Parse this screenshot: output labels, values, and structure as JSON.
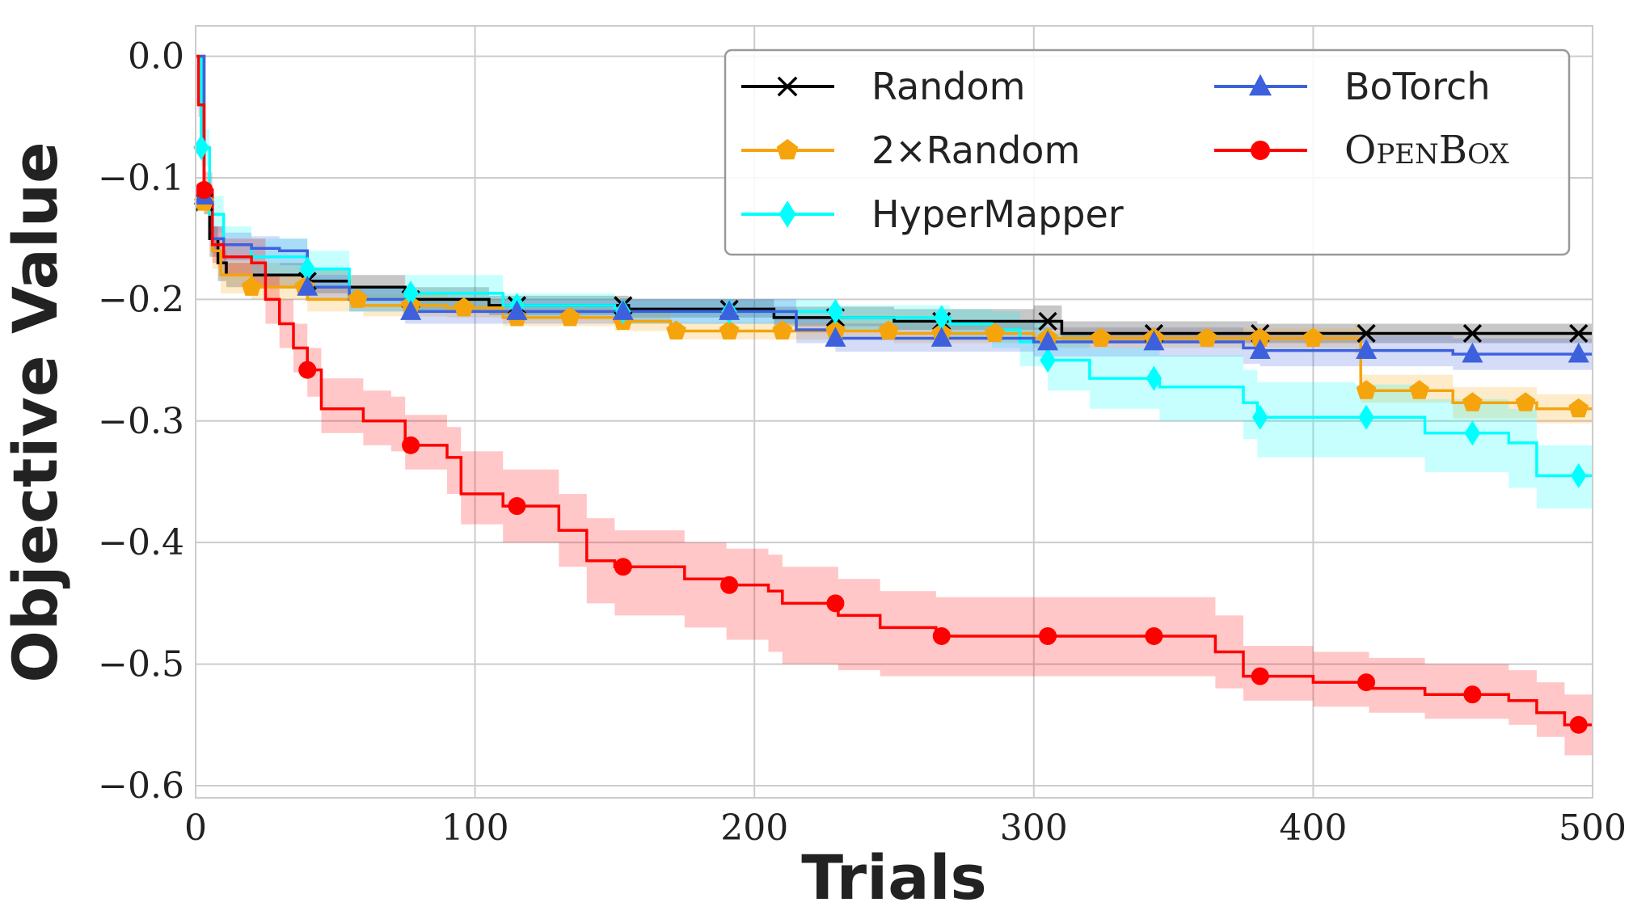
{
  "chart_data": {
    "type": "line",
    "title": "",
    "xlabel": "Trials",
    "ylabel": "Objective Value",
    "xlim": [
      0,
      500
    ],
    "ylim": [
      -0.61,
      0.025
    ],
    "xticks": [
      0,
      100,
      200,
      300,
      400,
      500
    ],
    "xtick_labels": [
      "0",
      "100",
      "200",
      "300",
      "400",
      "500"
    ],
    "yticks": [
      0.0,
      -0.1,
      -0.2,
      -0.3,
      -0.4,
      -0.5,
      -0.6
    ],
    "ytick_labels": [
      "0.0",
      "−0.1",
      "−0.2",
      "−0.3",
      "−0.4",
      "−0.5",
      "−0.6"
    ],
    "grid": true,
    "legend_position": "top-right",
    "series": [
      {
        "name": "Random",
        "color": "#000000",
        "marker": "x",
        "x": [
          0,
          3,
          5,
          8,
          11,
          40,
          55,
          75,
          105,
          155,
          195,
          207,
          250,
          300,
          310,
          380,
          500
        ],
        "y": [
          0.0,
          -0.12,
          -0.15,
          -0.17,
          -0.18,
          -0.185,
          -0.19,
          -0.2,
          -0.205,
          -0.208,
          -0.208,
          -0.215,
          -0.218,
          -0.218,
          -0.228,
          -0.228,
          -0.228
        ],
        "band_lower": [
          0.0,
          -0.13,
          -0.165,
          -0.185,
          -0.19,
          -0.195,
          -0.2,
          -0.21,
          -0.213,
          -0.215,
          -0.215,
          -0.222,
          -0.225,
          -0.225,
          -0.236,
          -0.236,
          -0.236
        ],
        "band_upper": [
          0.0,
          -0.11,
          -0.14,
          -0.16,
          -0.17,
          -0.175,
          -0.18,
          -0.19,
          -0.197,
          -0.2,
          -0.2,
          -0.206,
          -0.208,
          -0.205,
          -0.218,
          -0.22,
          -0.22
        ],
        "marker_x": [
          3,
          40,
          77,
          115,
          153,
          191,
          229,
          267,
          305,
          343,
          381,
          419,
          457,
          495
        ]
      },
      {
        "name": "2×Random",
        "color": "#f5a40c",
        "marker": "pentagon",
        "x": [
          0,
          3,
          6,
          9,
          20,
          40,
          60,
          90,
          110,
          150,
          170,
          200,
          250,
          300,
          350,
          415,
          417,
          450,
          480,
          500
        ],
        "y": [
          0.0,
          -0.12,
          -0.16,
          -0.18,
          -0.19,
          -0.2,
          -0.205,
          -0.207,
          -0.215,
          -0.218,
          -0.226,
          -0.226,
          -0.228,
          -0.232,
          -0.232,
          -0.232,
          -0.275,
          -0.285,
          -0.29,
          -0.29
        ],
        "band_lower": [
          0.0,
          -0.13,
          -0.175,
          -0.195,
          -0.2,
          -0.21,
          -0.214,
          -0.215,
          -0.222,
          -0.226,
          -0.233,
          -0.233,
          -0.236,
          -0.24,
          -0.24,
          -0.245,
          -0.285,
          -0.298,
          -0.302,
          -0.302
        ],
        "band_upper": [
          0.0,
          -0.11,
          -0.15,
          -0.17,
          -0.18,
          -0.19,
          -0.196,
          -0.2,
          -0.207,
          -0.21,
          -0.219,
          -0.219,
          -0.22,
          -0.224,
          -0.224,
          -0.22,
          -0.262,
          -0.272,
          -0.278,
          -0.278
        ],
        "marker_x": [
          3,
          20,
          39,
          58,
          77,
          96,
          115,
          134,
          153,
          172,
          191,
          210,
          229,
          248,
          267,
          286,
          305,
          324,
          343,
          362,
          381,
          400,
          419,
          438,
          457,
          476,
          495
        ]
      },
      {
        "name": "HyperMapper",
        "color": "#00ffff",
        "marker": "diamond",
        "x": [
          0,
          2,
          5,
          10,
          20,
          40,
          55,
          75,
          110,
          150,
          190,
          230,
          270,
          285,
          295,
          305,
          320,
          345,
          375,
          380,
          415,
          440,
          470,
          480,
          500
        ],
        "y": [
          0.0,
          -0.075,
          -0.13,
          -0.155,
          -0.165,
          -0.175,
          -0.2,
          -0.195,
          -0.205,
          -0.21,
          -0.21,
          -0.215,
          -0.22,
          -0.225,
          -0.235,
          -0.25,
          -0.265,
          -0.272,
          -0.285,
          -0.297,
          -0.297,
          -0.31,
          -0.318,
          -0.345,
          -0.345
        ],
        "band_lower": [
          0.0,
          -0.09,
          -0.145,
          -0.17,
          -0.18,
          -0.19,
          -0.21,
          -0.21,
          -0.215,
          -0.22,
          -0.22,
          -0.225,
          -0.232,
          -0.24,
          -0.255,
          -0.275,
          -0.29,
          -0.3,
          -0.315,
          -0.33,
          -0.33,
          -0.342,
          -0.355,
          -0.372,
          -0.372
        ],
        "band_upper": [
          0.0,
          -0.06,
          -0.115,
          -0.14,
          -0.15,
          -0.16,
          -0.19,
          -0.18,
          -0.195,
          -0.2,
          -0.2,
          -0.205,
          -0.208,
          -0.21,
          -0.218,
          -0.228,
          -0.24,
          -0.246,
          -0.258,
          -0.268,
          -0.27,
          -0.282,
          -0.29,
          -0.32,
          -0.32
        ],
        "marker_x": [
          2,
          40,
          77,
          115,
          153,
          191,
          229,
          267,
          305,
          343,
          381,
          419,
          457,
          495
        ]
      },
      {
        "name": "BoTorch",
        "color": "#3d61dd",
        "marker": "triangle",
        "x": [
          0,
          3,
          6,
          10,
          20,
          30,
          40,
          55,
          75,
          115,
          153,
          191,
          215,
          229,
          267,
          300,
          343,
          375,
          381,
          419,
          450,
          500
        ],
        "y": [
          0.0,
          -0.115,
          -0.15,
          -0.155,
          -0.158,
          -0.16,
          -0.19,
          -0.2,
          -0.21,
          -0.21,
          -0.21,
          -0.21,
          -0.225,
          -0.232,
          -0.232,
          -0.235,
          -0.235,
          -0.24,
          -0.242,
          -0.242,
          -0.245,
          -0.245
        ],
        "band_lower": [
          0.0,
          -0.125,
          -0.162,
          -0.168,
          -0.17,
          -0.172,
          -0.2,
          -0.21,
          -0.22,
          -0.22,
          -0.22,
          -0.22,
          -0.236,
          -0.243,
          -0.243,
          -0.247,
          -0.247,
          -0.253,
          -0.255,
          -0.255,
          -0.258,
          -0.258
        ],
        "band_upper": [
          0.0,
          -0.105,
          -0.14,
          -0.145,
          -0.148,
          -0.15,
          -0.18,
          -0.19,
          -0.2,
          -0.2,
          -0.2,
          -0.2,
          -0.214,
          -0.22,
          -0.22,
          -0.223,
          -0.223,
          -0.228,
          -0.23,
          -0.23,
          -0.232,
          -0.232
        ],
        "marker_x": [
          3,
          40,
          77,
          115,
          153,
          191,
          229,
          267,
          305,
          343,
          381,
          419,
          457,
          495
        ]
      },
      {
        "name": "OpenBox",
        "color": "#ff0000",
        "marker": "circle",
        "x": [
          0,
          1,
          3,
          6,
          10,
          20,
          25,
          30,
          35,
          40,
          45,
          60,
          70,
          75,
          90,
          95,
          110,
          130,
          140,
          150,
          175,
          190,
          205,
          210,
          230,
          245,
          265,
          300,
          340,
          365,
          375,
          400,
          420,
          440,
          470,
          480,
          490,
          500
        ],
        "y": [
          0.0,
          -0.04,
          -0.11,
          -0.155,
          -0.165,
          -0.17,
          -0.2,
          -0.22,
          -0.24,
          -0.258,
          -0.29,
          -0.3,
          -0.3,
          -0.32,
          -0.33,
          -0.36,
          -0.37,
          -0.39,
          -0.415,
          -0.42,
          -0.43,
          -0.435,
          -0.44,
          -0.45,
          -0.46,
          -0.47,
          -0.477,
          -0.477,
          -0.477,
          -0.49,
          -0.51,
          -0.515,
          -0.52,
          -0.525,
          -0.53,
          -0.54,
          -0.55,
          -0.55
        ],
        "band_lower": [
          0.0,
          -0.05,
          -0.125,
          -0.17,
          -0.18,
          -0.19,
          -0.22,
          -0.24,
          -0.26,
          -0.28,
          -0.31,
          -0.32,
          -0.325,
          -0.34,
          -0.36,
          -0.385,
          -0.4,
          -0.42,
          -0.45,
          -0.46,
          -0.47,
          -0.48,
          -0.49,
          -0.5,
          -0.505,
          -0.51,
          -0.51,
          -0.51,
          -0.51,
          -0.52,
          -0.53,
          -0.535,
          -0.54,
          -0.545,
          -0.55,
          -0.56,
          -0.575,
          -0.575
        ],
        "band_upper": [
          0.0,
          -0.03,
          -0.095,
          -0.14,
          -0.15,
          -0.15,
          -0.18,
          -0.2,
          -0.22,
          -0.24,
          -0.265,
          -0.275,
          -0.28,
          -0.295,
          -0.305,
          -0.325,
          -0.34,
          -0.36,
          -0.38,
          -0.39,
          -0.4,
          -0.405,
          -0.41,
          -0.42,
          -0.43,
          -0.44,
          -0.445,
          -0.445,
          -0.445,
          -0.46,
          -0.485,
          -0.49,
          -0.495,
          -0.5,
          -0.505,
          -0.515,
          -0.525,
          -0.525
        ],
        "marker_x": [
          3,
          40,
          77,
          115,
          153,
          191,
          229,
          267,
          305,
          343,
          381,
          419,
          457,
          495
        ]
      }
    ]
  }
}
